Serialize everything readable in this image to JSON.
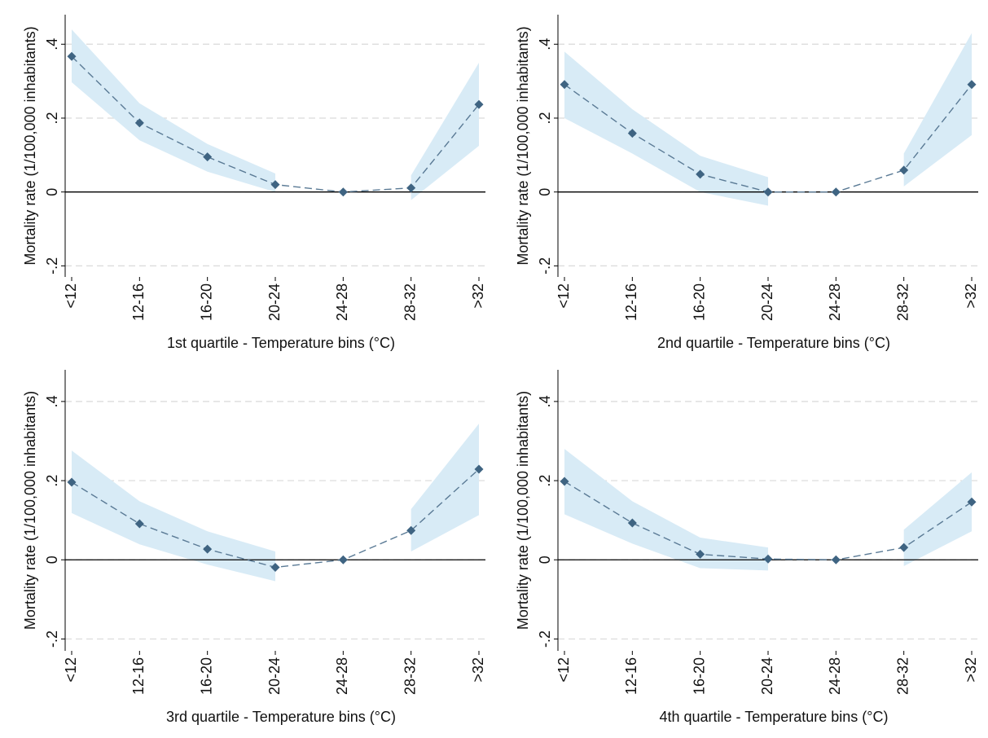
{
  "chart_data": [
    {
      "type": "line",
      "xlabel": "1st quartile - Temperature bins (°C)",
      "ylabel": "Mortality rate (1/100,000 inhabitants)",
      "categories": [
        "<12",
        "12-16",
        "16-20",
        "20-24",
        "24-28",
        "28-32",
        ">32"
      ],
      "values": [
        0.367,
        0.187,
        0.095,
        0.02,
        0,
        0.011,
        0.237
      ],
      "ci_upper": [
        0.44,
        0.24,
        0.13,
        0.05,
        null,
        0.045,
        0.35
      ],
      "ci_lower": [
        0.297,
        0.14,
        0.055,
        0,
        null,
        -0.022,
        0.125
      ],
      "color": "#3f6482",
      "band_color": "#d8ebf6",
      "ylim": [
        -0.23,
        0.48
      ],
      "yticks": [
        {
          "value": -0.2,
          "label": "-.2"
        },
        0,
        {
          "value": 0.2,
          "label": ".2"
        },
        {
          "value": 0.4,
          "label": ".4"
        }
      ],
      "grid": true
    },
    {
      "type": "line",
      "xlabel": "2nd quartile - Temperature bins (°C)",
      "ylabel": "Mortality rate (1/100,000 inhabitants)",
      "categories": [
        "<12",
        "12-16",
        "16-20",
        "20-24",
        "24-28",
        "28-32",
        ">32"
      ],
      "values": [
        0.291,
        0.159,
        0.048,
        0,
        0,
        0.059,
        0.291
      ],
      "ci_upper": [
        0.38,
        0.224,
        0.098,
        0.04,
        null,
        0.104,
        0.43
      ],
      "ci_lower": [
        0.2,
        0.104,
        0,
        -0.037,
        null,
        0.015,
        0.154
      ],
      "color": "#3f6482",
      "band_color": "#d8ebf6",
      "ylim": [
        -0.23,
        0.48
      ],
      "yticks": [
        {
          "value": -0.2,
          "label": "-.2"
        },
        0,
        {
          "value": 0.2,
          "label": ".2"
        },
        {
          "value": 0.4,
          "label": ".4"
        }
      ],
      "grid": true
    },
    {
      "type": "line",
      "xlabel": "3rd quartile - Temperature bins (°C)",
      "ylabel": "Mortality rate (1/100,000 inhabitants)",
      "categories": [
        "<12",
        "12-16",
        "16-20",
        "20-24",
        "24-28",
        "28-32",
        ">32"
      ],
      "values": [
        0.196,
        0.091,
        0.027,
        -0.019,
        0,
        0.074,
        0.229
      ],
      "ci_upper": [
        0.276,
        0.148,
        0.072,
        0.021,
        null,
        0.128,
        0.344
      ],
      "ci_lower": [
        0.118,
        0.039,
        -0.012,
        -0.054,
        null,
        0.021,
        0.113
      ],
      "color": "#3f6482",
      "band_color": "#d8ebf6",
      "ylim": [
        -0.23,
        0.48
      ],
      "yticks": [
        {
          "value": -0.2,
          "label": "-.2"
        },
        0,
        {
          "value": 0.2,
          "label": ".2"
        },
        {
          "value": 0.4,
          "label": ".4"
        }
      ],
      "grid": true
    },
    {
      "type": "line",
      "xlabel": "4th quartile - Temperature bins (°C)",
      "ylabel": "Mortality rate (1/100,000 inhabitants)",
      "categories": [
        "<12",
        "12-16",
        "16-20",
        "20-24",
        "24-28",
        "28-32",
        ">32"
      ],
      "values": [
        0.198,
        0.093,
        0.014,
        0.002,
        0,
        0.031,
        0.146
      ],
      "ci_upper": [
        0.28,
        0.148,
        0.056,
        0.031,
        null,
        0.076,
        0.221
      ],
      "ci_lower": [
        0.115,
        0.041,
        -0.021,
        -0.027,
        null,
        -0.016,
        0.072
      ],
      "color": "#3f6482",
      "band_color": "#d8ebf6",
      "ylim": [
        -0.23,
        0.48
      ],
      "yticks": [
        {
          "value": -0.2,
          "label": "-.2"
        },
        0,
        {
          "value": 0.2,
          "label": ".2"
        },
        {
          "value": 0.4,
          "label": ".4"
        }
      ],
      "grid": true
    }
  ]
}
